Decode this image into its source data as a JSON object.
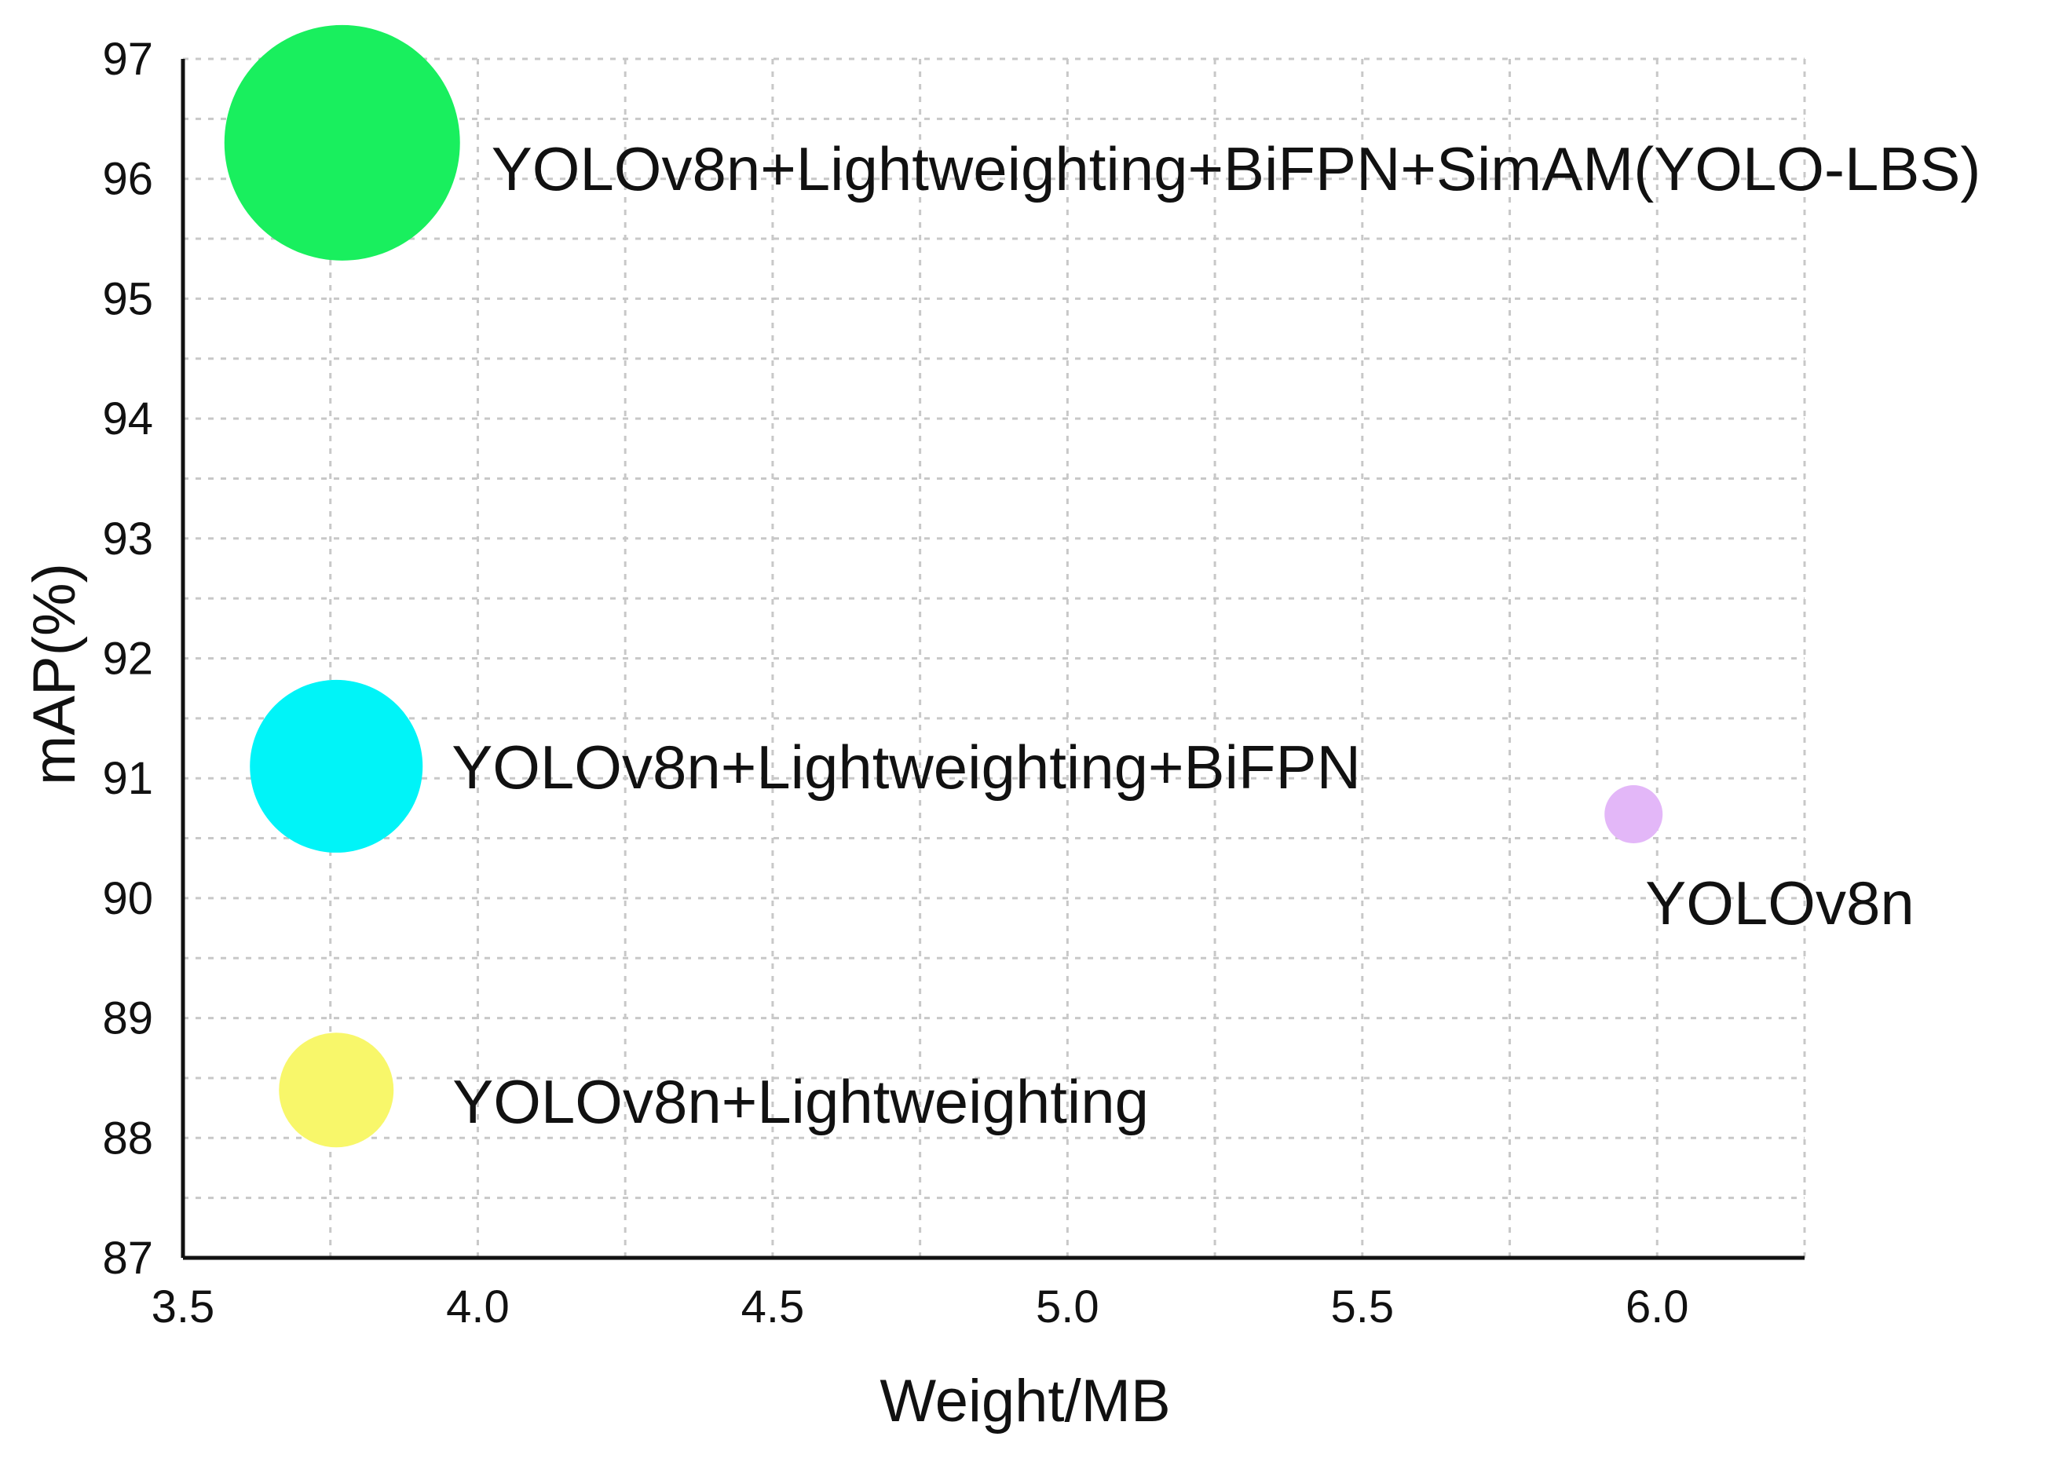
{
  "chart_data": {
    "type": "scatter",
    "subtype": "bubble",
    "title": "",
    "xlabel": "Weight/MB",
    "ylabel": "mAP(%)",
    "xlim": [
      3.5,
      6.25
    ],
    "ylim": [
      87,
      97
    ],
    "xticks": [
      "3.5",
      "4.0",
      "4.5",
      "5.0",
      "5.5",
      "6.0"
    ],
    "yticks": [
      "87",
      "88",
      "89",
      "90",
      "91",
      "92",
      "93",
      "94",
      "95",
      "96",
      "97"
    ],
    "grid": true,
    "points": [
      {
        "label": "YOLOv8n+Lightweighting+BiFPN+SimAM(YOLO-LBS)",
        "x": 3.77,
        "y": 96.3,
        "size": 4,
        "color": "#19ef5e"
      },
      {
        "label": "YOLOv8n+Lightweighting+BiFPN",
        "x": 3.76,
        "y": 91.1,
        "size": 3,
        "color": "#00f4f8"
      },
      {
        "label": "YOLOv8n+Lightweighting",
        "x": 3.76,
        "y": 88.4,
        "size": 2,
        "color": "#f8f76a"
      },
      {
        "label": "YOLOv8n",
        "x": 5.96,
        "y": 90.7,
        "size": 1,
        "color": "#e3b7f8"
      }
    ]
  }
}
